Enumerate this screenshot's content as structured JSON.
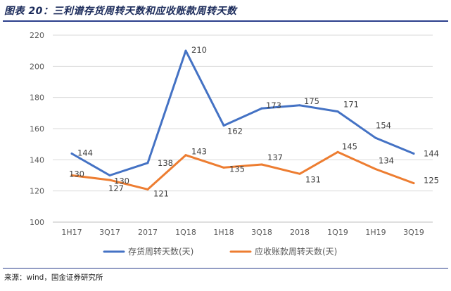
{
  "header": {
    "title": "图表 20：三利谱存货周转天数和应收账款周转天数"
  },
  "footer": {
    "source": "来源：wind，国金证券研究所"
  },
  "colors": {
    "series_inventory": "#4472C4",
    "series_receivable": "#ED7D31",
    "grid": "#D9D9D9",
    "title_rule": "#2B3F8C"
  },
  "chart_data": {
    "type": "line",
    "title": "",
    "xlabel": "",
    "ylabel": "",
    "categories": [
      "1H17",
      "3Q17",
      "2017",
      "1Q18",
      "1H18",
      "3Q18",
      "2018",
      "1Q19",
      "1H19",
      "3Q19"
    ],
    "series": [
      {
        "name": "存货周转天数(天)",
        "values": [
          144,
          130,
          138,
          210,
          162,
          173,
          175,
          171,
          154,
          144
        ],
        "labels": [
          "144",
          "130",
          "",
          "210",
          "162",
          "173",
          "175",
          "171",
          "154",
          "144"
        ]
      },
      {
        "name": "应收账款周转天数(天)",
        "values": [
          130,
          127,
          121,
          143,
          135,
          137,
          131,
          145,
          134,
          125
        ],
        "labels": [
          "130",
          "127",
          "121",
          "143",
          "135",
          "137",
          "131",
          "145",
          "134",
          "125"
        ]
      }
    ],
    "extra_labels": [
      "138"
    ],
    "ylim": [
      100,
      220
    ],
    "yticks": [
      100,
      120,
      140,
      160,
      180,
      200,
      220
    ],
    "grid": true,
    "legend": "bottom"
  }
}
